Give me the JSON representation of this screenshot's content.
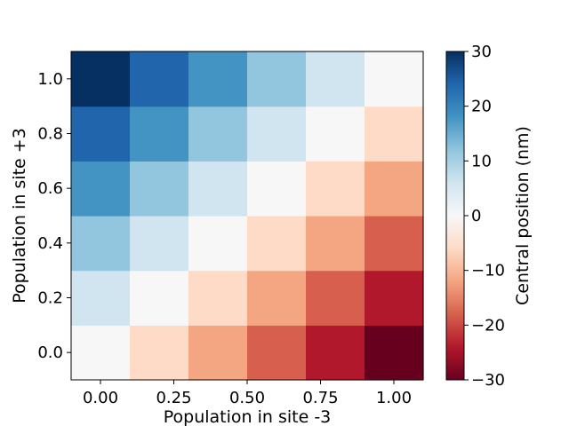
{
  "chart_data": {
    "type": "heatmap",
    "title": "",
    "xlabel": "Population in site -3",
    "ylabel": "Population in site +3",
    "x_ticks": [
      "0.00",
      "0.25",
      "0.50",
      "0.75",
      "1.00"
    ],
    "x_tick_values": [
      0.0,
      0.25,
      0.5,
      0.75,
      1.0
    ],
    "y_ticks": [
      "0.0",
      "0.2",
      "0.4",
      "0.6",
      "0.8",
      "1.0"
    ],
    "y_tick_values": [
      0.0,
      0.2,
      0.4,
      0.6,
      0.8,
      1.0
    ],
    "x": [
      0.0,
      0.2,
      0.4,
      0.6,
      0.8,
      1.0
    ],
    "y": [
      0.0,
      0.2,
      0.4,
      0.6,
      0.8,
      1.0
    ],
    "xlim": [
      -0.1,
      1.1
    ],
    "ylim": [
      -0.1,
      1.1
    ],
    "values": [
      [
        0,
        -6,
        -12,
        -18,
        -24,
        -30
      ],
      [
        6,
        0,
        -6,
        -12,
        -18,
        -24
      ],
      [
        12,
        6,
        0,
        -6,
        -12,
        -18
      ],
      [
        18,
        12,
        6,
        0,
        -6,
        -12
      ],
      [
        24,
        18,
        12,
        6,
        0,
        -6
      ],
      [
        30,
        24,
        18,
        12,
        6,
        0
      ]
    ],
    "colorbar": {
      "label": "Central position (nm)",
      "min": -30,
      "max": 30,
      "ticks": [
        "30",
        "20",
        "10",
        "0",
        "−10",
        "−20",
        "−30"
      ],
      "tick_values": [
        30,
        20,
        10,
        0,
        -10,
        -20,
        -30
      ],
      "colormap": "RdBu"
    },
    "grid": false
  }
}
